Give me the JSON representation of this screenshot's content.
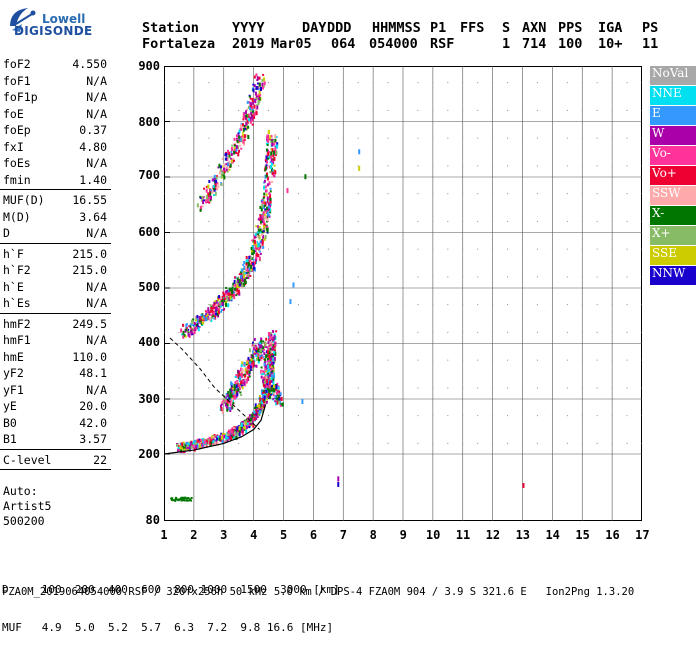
{
  "logo": {
    "line1": "Lowell",
    "line2": "DIGISONDE"
  },
  "header": {
    "row1": [
      "Station",
      "YYYY",
      "DAY",
      "DDD",
      "HHMMSS",
      "P1",
      "FFS",
      "S",
      "AXN",
      "PPS",
      "IGA",
      "PS"
    ],
    "row2": [
      "Fortaleza",
      "2019",
      "Mar05",
      "064",
      "054000",
      "RSF",
      "",
      "1",
      "714",
      "100",
      "10+",
      "11"
    ]
  },
  "params": {
    "group1": [
      {
        "label": "foF2",
        "value": "4.550"
      },
      {
        "label": "foF1",
        "value": "N/A"
      },
      {
        "label": "foF1p",
        "value": "N/A"
      },
      {
        "label": "foE",
        "value": "N/A"
      },
      {
        "label": "foEp",
        "value": "0.37"
      },
      {
        "label": "fxI",
        "value": "4.80"
      },
      {
        "label": "foEs",
        "value": "N/A"
      },
      {
        "label": "fmin",
        "value": "1.40"
      }
    ],
    "group2": [
      {
        "label": "MUF(D)",
        "value": "16.55"
      },
      {
        "label": "M(D)",
        "value": "3.64"
      },
      {
        "label": "D",
        "value": "N/A"
      }
    ],
    "group3": [
      {
        "label": "h`F",
        "value": "215.0"
      },
      {
        "label": "h`F2",
        "value": "215.0"
      },
      {
        "label": "h`E",
        "value": "N/A"
      },
      {
        "label": "h`Es",
        "value": "N/A"
      }
    ],
    "group4": [
      {
        "label": "hmF2",
        "value": "249.5"
      },
      {
        "label": "hmF1",
        "value": "N/A"
      },
      {
        "label": "hmE",
        "value": "110.0"
      },
      {
        "label": "yF2",
        "value": "48.1"
      },
      {
        "label": "yF1",
        "value": "N/A"
      },
      {
        "label": "yE",
        "value": "20.0"
      },
      {
        "label": "B0",
        "value": "42.0"
      },
      {
        "label": "B1",
        "value": "3.57"
      }
    ],
    "group5": [
      {
        "label": "C-level",
        "value": "22"
      }
    ]
  },
  "auto": {
    "line1": "Auto:",
    "line2": "Artist5",
    "line3": "500200"
  },
  "legend": [
    {
      "label": "NoVal",
      "color": "#a8a8a8"
    },
    {
      "label": "NNE",
      "color": "#00e0f0"
    },
    {
      "label": "E",
      "color": "#3399ff"
    },
    {
      "label": "W",
      "color": "#aa00aa"
    },
    {
      "label": "Vo-",
      "color": "#ff3399"
    },
    {
      "label": "Vo+",
      "color": "#ee0033"
    },
    {
      "label": "SSW",
      "color": "#ffaaaa"
    },
    {
      "label": "X-",
      "color": "#007700"
    },
    {
      "label": "X+",
      "color": "#88bb66"
    },
    {
      "label": "SSE",
      "color": "#cccc00"
    },
    {
      "label": "NNW",
      "color": "#1a00cc"
    }
  ],
  "axes": {
    "y_ticks": [
      "900",
      "800",
      "700",
      "600",
      "500",
      "400",
      "300",
      "200",
      "80"
    ],
    "x_ticks": [
      "1",
      "2",
      "3",
      "4",
      "5",
      "6",
      "7",
      "8",
      "9",
      "10",
      "11",
      "12",
      "13",
      "14",
      "15",
      "16",
      "17"
    ]
  },
  "bottom": {
    "row1": "D     100  200  400  600  800 1000  1500  3000 [km]",
    "row2": "MUF   4.9  5.0  5.2  5.7  6.3  7.2  9.8 16.6 [MHz]"
  },
  "footer": "FZA0M_2019064054000.RSF / 320fx256h 50 kHz 5.0 km / DPS-4 FZA0M 904 / 3.9 S 321.6 E   Ion2Png 1.3.20"
}
